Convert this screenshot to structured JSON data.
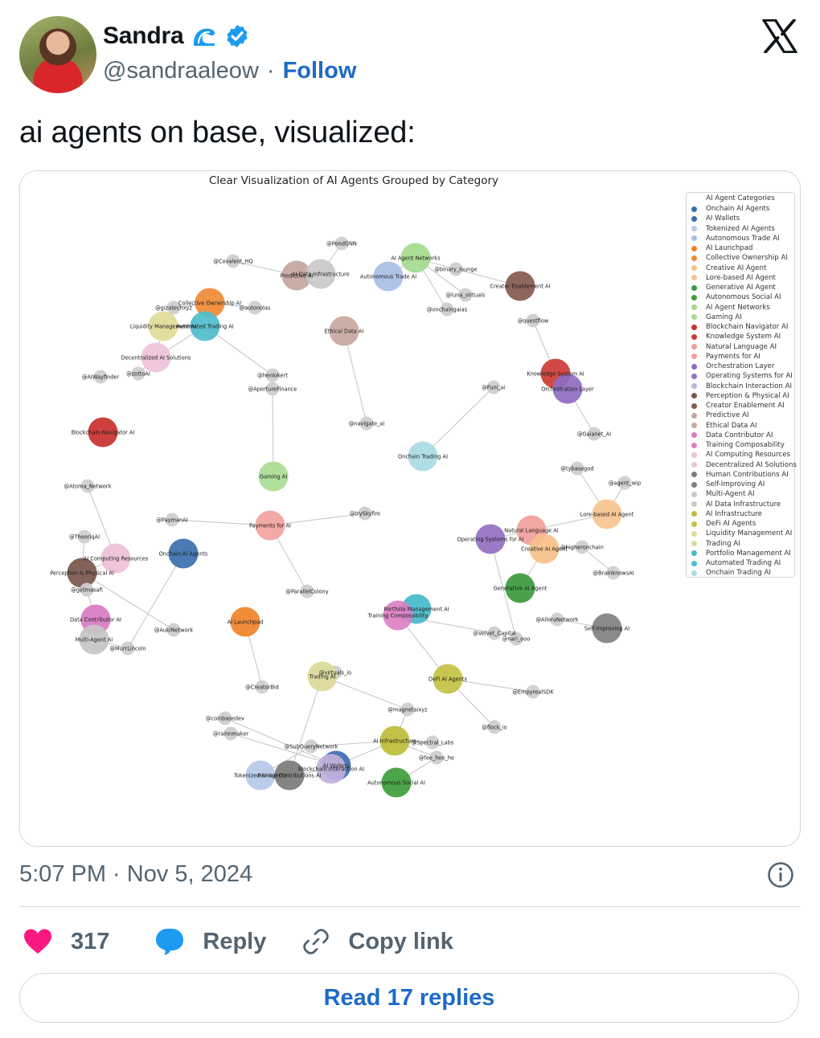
{
  "author": {
    "display_name": "Sandra",
    "handle": "@sandraaleow",
    "separator": "·",
    "follow_label": "Follow"
  },
  "tweet": {
    "text": "ai agents on base, visualized:",
    "timestamp": "5:07 PM · Nov 5, 2024"
  },
  "actions": {
    "likes": "317",
    "reply_label": "Reply",
    "copy_label": "Copy link",
    "read_replies": "Read 17 replies"
  },
  "colors": {
    "link_blue": "#1d6ac9",
    "heart": "#f91880",
    "reply_icon": "#1d9bf0",
    "verified": "#1d9bf0"
  },
  "icons": [
    "x-logo-icon",
    "verified-badge-icon",
    "wave-icon",
    "info-icon",
    "heart-icon",
    "reply-bubble-icon",
    "link-icon"
  ],
  "chart": {
    "title": "Clear Visualization of AI Agents Grouped by Category",
    "legend_title": "AI Agent Categories",
    "legend": [
      {
        "label": "Onchain AI Agents",
        "color": "#3b6fad"
      },
      {
        "label": "AI Wallets",
        "color": "#3f6db1"
      },
      {
        "label": "Tokenized AI Agents",
        "color": "#b6c9ea"
      },
      {
        "label": "Autonomous Trade AI",
        "color": "#a9bfe6"
      },
      {
        "label": "AI Launchpad",
        "color": "#f0822a"
      },
      {
        "label": "Collective Ownership AI",
        "color": "#ef8a35"
      },
      {
        "label": "Creative AI Agent",
        "color": "#f6c089"
      },
      {
        "label": "Lore-based AI Agent",
        "color": "#f6c48e"
      },
      {
        "label": "Generative AI Agent",
        "color": "#3a9a3c"
      },
      {
        "label": "Autonomous Social AI",
        "color": "#3d9e3a"
      },
      {
        "label": "AI Agent Networks",
        "color": "#a5db8e"
      },
      {
        "label": "Gaming AI",
        "color": "#a9dc93"
      },
      {
        "label": "Blockchain Navigator AI",
        "color": "#c9302c"
      },
      {
        "label": "Knowledge System AI",
        "color": "#cd3a35"
      },
      {
        "label": "Natural Language AI",
        "color": "#f1a09b"
      },
      {
        "label": "Payments for AI",
        "color": "#f2a29d"
      },
      {
        "label": "Orchestration Layer",
        "color": "#8e6cbf"
      },
      {
        "label": "Operating Systems for AI",
        "color": "#9270c3"
      },
      {
        "label": "Blockchain Interaction AI",
        "color": "#c2b1dc"
      },
      {
        "label": "Perception & Physical AI",
        "color": "#7a564c"
      },
      {
        "label": "Creator Enablement AI",
        "color": "#86594f"
      },
      {
        "label": "Predictive AI",
        "color": "#c4a59d"
      },
      {
        "label": "Ethical Data AI",
        "color": "#c7a89f"
      },
      {
        "label": "Data Contributor AI",
        "color": "#d87ac1"
      },
      {
        "label": "Training Composability",
        "color": "#dc80c4"
      },
      {
        "label": "AI Computing Resources",
        "color": "#efbfd9"
      },
      {
        "label": "Decentralized AI Solutions",
        "color": "#f0c2db"
      },
      {
        "label": "Human Contributions AI",
        "color": "#7a7a7a"
      },
      {
        "label": "Self-Improving AI",
        "color": "#808080"
      },
      {
        "label": "Multi-Agent AI",
        "color": "#c6c6c6"
      },
      {
        "label": "AI Data Infrastructure",
        "color": "#c9c9c9"
      },
      {
        "label": "AI Infrastructure",
        "color": "#bdbd3a"
      },
      {
        "label": "DeFi AI Agents",
        "color": "#c3c244"
      },
      {
        "label": "Liquidity Management AI",
        "color": "#dedb98"
      },
      {
        "label": "Trading AI",
        "color": "#dcd99a"
      },
      {
        "label": "Portfolio Management AI",
        "color": "#46b8c9"
      },
      {
        "label": "Automated Trading AI",
        "color": "#4fbccb"
      },
      {
        "label": "Onchain Trading AI",
        "color": "#a9dbe5"
      }
    ],
    "nodes": [
      {
        "id": "covalent",
        "label": "@Covalent_HQ",
        "color": "#cfcfcf",
        "r": "s"
      },
      {
        "id": "pondgnn",
        "label": "@PondGNN",
        "color": "#cfcfcf",
        "r": "s"
      },
      {
        "id": "predictive",
        "label": "Predictive AI",
        "color": "#c4a59d",
        "r": "l"
      },
      {
        "id": "aidatainfra",
        "label": "AI Data Infrastructure",
        "color": "#c9c9c9",
        "r": "l"
      },
      {
        "id": "aiagentnet",
        "label": "AI Agent Networks",
        "color": "#a5db8e",
        "r": "l"
      },
      {
        "id": "binary",
        "label": "@binary_lounge",
        "color": "#cfcfcf",
        "r": "s"
      },
      {
        "id": "autotrade",
        "label": "Autonomous Trade AI",
        "color": "#a9bfe6",
        "r": "l"
      },
      {
        "id": "luna",
        "label": "@luna_virtuals",
        "color": "#cfcfcf",
        "r": "s"
      },
      {
        "id": "onchaingaias",
        "label": "@onchaingaias",
        "color": "#cfcfcf",
        "r": "s"
      },
      {
        "id": "creatorenable",
        "label": "Creator Enablement AI",
        "color": "#86594f",
        "r": "l"
      },
      {
        "id": "collective",
        "label": "Collective Ownership AI",
        "color": "#ef8a35",
        "r": "l"
      },
      {
        "id": "gizatech",
        "label": "@gizatechxyz",
        "color": "#cfcfcf",
        "r": "s"
      },
      {
        "id": "autonolas",
        "label": "@autonolas",
        "color": "#cfcfcf",
        "r": "s"
      },
      {
        "id": "liquidity",
        "label": "Liquidity Management AI",
        "color": "#dedb98",
        "r": "l"
      },
      {
        "id": "autotrading",
        "label": "Automated Trading AI",
        "color": "#4fbccb",
        "r": "l"
      },
      {
        "id": "ethicaldata",
        "label": "Ethical Data AI",
        "color": "#c7a89f",
        "r": "l"
      },
      {
        "id": "questflow",
        "label": "@questflow",
        "color": "#cfcfcf",
        "r": "s"
      },
      {
        "id": "decentral",
        "label": "Decentralized AI Solutions",
        "color": "#f0c2db",
        "r": "l"
      },
      {
        "id": "aiwayfinder",
        "label": "@AIWayfinder",
        "color": "#cfcfcf",
        "r": "s"
      },
      {
        "id": "zottoai",
        "label": "@zottoAI",
        "color": "#cfcfcf",
        "r": "s"
      },
      {
        "id": "heniokert",
        "label": "@henlokert",
        "color": "#cfcfcf",
        "r": "s"
      },
      {
        "id": "aperture",
        "label": "@ApertureFinance",
        "color": "#cfcfcf",
        "r": "s"
      },
      {
        "id": "knowledge",
        "label": "Knowledge System AI",
        "color": "#cd3a35",
        "r": "l"
      },
      {
        "id": "orchestration",
        "label": "Orchestration Layer",
        "color": "#8e6cbf",
        "r": "l"
      },
      {
        "id": "funai",
        "label": "@Funi_ai",
        "color": "#cfcfcf",
        "r": "s"
      },
      {
        "id": "navigateai",
        "label": "@navigate_ai",
        "color": "#cfcfcf",
        "r": "s"
      },
      {
        "id": "blocknav",
        "label": "Blockchain Navigator AI",
        "color": "#c9302c",
        "r": "l"
      },
      {
        "id": "gaianet",
        "label": "@Gaianet_AI",
        "color": "#cfcfcf",
        "r": "s"
      },
      {
        "id": "onchaintrading",
        "label": "Onchain Trading AI",
        "color": "#a9dbe5",
        "r": "l"
      },
      {
        "id": "tybasegod",
        "label": "@tybasegod",
        "color": "#cfcfcf",
        "r": "s"
      },
      {
        "id": "agentwip",
        "label": "@agent_wip",
        "color": "#cfcfcf",
        "r": "s"
      },
      {
        "id": "gamingai",
        "label": "Gaming AI",
        "color": "#a9dc93",
        "r": "l"
      },
      {
        "id": "atoma",
        "label": "@Atoma_Network",
        "color": "#cfcfcf",
        "r": "s"
      },
      {
        "id": "paymanai",
        "label": "@PaymanAI",
        "color": "#cfcfcf",
        "r": "s"
      },
      {
        "id": "payments",
        "label": "Payments for AI",
        "color": "#f2a29d",
        "r": "l"
      },
      {
        "id": "tryskyfire",
        "label": "@trySkyfire",
        "color": "#cfcfcf",
        "r": "s"
      },
      {
        "id": "lorebased",
        "label": "Lore-based AI Agent",
        "color": "#f6c48e",
        "r": "l"
      },
      {
        "id": "theoriqai",
        "label": "@TheoriqAI",
        "color": "#cfcfcf",
        "r": "s"
      },
      {
        "id": "onchainagents",
        "label": "Onchain AI Agents",
        "color": "#3b6fad",
        "r": "l"
      },
      {
        "id": "natural",
        "label": "Natural Language AI",
        "color": "#f1a09b",
        "r": "l"
      },
      {
        "id": "opsys",
        "label": "Operating Systems for AI",
        "color": "#9270c3",
        "r": "l"
      },
      {
        "id": "creative",
        "label": "Creative AI Agent",
        "color": "#f6c089",
        "r": "l"
      },
      {
        "id": "higheron",
        "label": "@higheronchain",
        "color": "#cfcfcf",
        "r": "s"
      },
      {
        "id": "computing",
        "label": "AI Computing Resources",
        "color": "#efbfd9",
        "r": "l"
      },
      {
        "id": "perception",
        "label": "Perception & Physical AI",
        "color": "#7a564c",
        "r": "l"
      },
      {
        "id": "brainknows",
        "label": "@BrainknowsAI",
        "color": "#cfcfcf",
        "r": "s"
      },
      {
        "id": "getmasafi",
        "label": "@getmasafi",
        "color": "#cfcfcf",
        "r": "s"
      },
      {
        "id": "generative",
        "label": "Generative AI Agent",
        "color": "#3a9a3c",
        "r": "l"
      },
      {
        "id": "parallel",
        "label": "@ParallelColony",
        "color": "#cfcfcf",
        "r": "s"
      },
      {
        "id": "portfolio",
        "label": "Portfolio Management AI",
        "color": "#46b8c9",
        "r": "l"
      },
      {
        "id": "training",
        "label": "Training Composability",
        "color": "#dc80c4",
        "r": "l"
      },
      {
        "id": "datacontrib",
        "label": "Data Contributor AI",
        "color": "#d87ac1",
        "r": "l"
      },
      {
        "id": "aillora",
        "label": "@AlloraNetwork",
        "color": "#cfcfcf",
        "r": "s"
      },
      {
        "id": "selfimprove",
        "label": "Self-Improving AI",
        "color": "#808080",
        "r": "l"
      },
      {
        "id": "aitaunch",
        "label": "AI Launchpad",
        "color": "#f0822a",
        "r": "l"
      },
      {
        "id": "aukinet",
        "label": "@AukiNetwork",
        "color": "#cfcfcf",
        "r": "s"
      },
      {
        "id": "velvet",
        "label": "@Velvet_Capital",
        "color": "#cfcfcf",
        "r": "s"
      },
      {
        "id": "narisoo",
        "label": "@nari_ooo",
        "color": "#cfcfcf",
        "r": "s"
      },
      {
        "id": "multiagent",
        "label": "Multi-Agent AI",
        "color": "#c6c6c6",
        "r": "l"
      },
      {
        "id": "murrlincoln",
        "label": "@MurrLincoln",
        "color": "#cfcfcf",
        "r": "s"
      },
      {
        "id": "virtuals",
        "label": "@virtuals_io",
        "color": "#cfcfcf",
        "r": "s"
      },
      {
        "id": "tradingai",
        "label": "Trading AI",
        "color": "#dcd99a",
        "r": "l"
      },
      {
        "id": "defi",
        "label": "DeFi AI Agents",
        "color": "#c3c244",
        "r": "l"
      },
      {
        "id": "creatorbid",
        "label": "@CreatorBid",
        "color": "#cfcfcf",
        "r": "s"
      },
      {
        "id": "empyreal",
        "label": "@EmpyrealSDK",
        "color": "#cfcfcf",
        "r": "s"
      },
      {
        "id": "magnetaixyz",
        "label": "@magnetaixyz",
        "color": "#cfcfcf",
        "r": "s"
      },
      {
        "id": "coinbasedev",
        "label": "@coinbasedev",
        "color": "#cfcfcf",
        "r": "s"
      },
      {
        "id": "flockio",
        "label": "@flock_io",
        "color": "#cfcfcf",
        "r": "s"
      },
      {
        "id": "rainmaker",
        "label": "@rainnmaker",
        "color": "#cfcfcf",
        "r": "s"
      },
      {
        "id": "aiinfra",
        "label": "AI Infrastructure",
        "color": "#bdbd3a",
        "r": "l"
      },
      {
        "id": "spectral",
        "label": "@Spectral_Labs",
        "color": "#cfcfcf",
        "r": "s"
      },
      {
        "id": "subquery",
        "label": "@SubQueryNetwork",
        "color": "#cfcfcf",
        "r": "s"
      },
      {
        "id": "feeheehe",
        "label": "@fee_hee_he",
        "color": "#cfcfcf",
        "r": "s"
      },
      {
        "id": "aiwallets",
        "label": "AI Wallets",
        "color": "#3f6db1",
        "r": "l"
      },
      {
        "id": "blockinteract",
        "label": "Blockchain Interaction AI",
        "color": "#c2b1dc",
        "r": "l"
      },
      {
        "id": "tokenized",
        "label": "Tokenized AI Agents",
        "color": "#b6c9ea",
        "r": "l"
      },
      {
        "id": "humancontrib",
        "label": "Human Contributions AI",
        "color": "#7a7a7a",
        "r": "l"
      },
      {
        "id": "autosocial",
        "label": "Autonomous Social AI",
        "color": "#3d9e3a",
        "r": "l"
      }
    ],
    "edges": [
      [
        "covalent",
        "predictive"
      ],
      [
        "pondgnn",
        "aidatainfra"
      ],
      [
        "predictive",
        "aidatainfra"
      ],
      [
        "aiagentnet",
        "binary"
      ],
      [
        "aiagentnet",
        "autotrade"
      ],
      [
        "aiagentnet",
        "luna"
      ],
      [
        "aiagentnet",
        "onchaingaias"
      ],
      [
        "binary",
        "creatorenable"
      ],
      [
        "collective",
        "gizatech"
      ],
      [
        "collective",
        "autonolas"
      ],
      [
        "gizatech",
        "liquidity"
      ],
      [
        "liquidity",
        "autotrading"
      ],
      [
        "liquidity",
        "decentral"
      ],
      [
        "autotrading",
        "decentral"
      ],
      [
        "autotrading",
        "heniokert"
      ],
      [
        "decentral",
        "zottoai"
      ],
      [
        "aperture",
        "gamingai"
      ],
      [
        "ethicaldata",
        "navigateai"
      ],
      [
        "questflow",
        "knowledge"
      ],
      [
        "knowledge",
        "orchestration"
      ],
      [
        "orchestration",
        "gaianet"
      ],
      [
        "funai",
        "onchaintrading"
      ],
      [
        "tybasegod",
        "lorebased"
      ],
      [
        "agentwip",
        "lorebased"
      ],
      [
        "lorebased",
        "natural"
      ],
      [
        "natural",
        "opsys"
      ],
      [
        "creative",
        "higheron"
      ],
      [
        "creative",
        "generative"
      ],
      [
        "higheron",
        "brainknows"
      ],
      [
        "opsys",
        "narisoo"
      ],
      [
        "paymanai",
        "payments"
      ],
      [
        "payments",
        "tryskyfire"
      ],
      [
        "payments",
        "parallel"
      ],
      [
        "atoma",
        "computing"
      ],
      [
        "theoriqai",
        "perception"
      ],
      [
        "perception",
        "computing"
      ],
      [
        "perception",
        "getmasafi"
      ],
      [
        "perception",
        "aukinet"
      ],
      [
        "getmasafi",
        "datacontrib"
      ],
      [
        "onchainagents",
        "murrlincoln"
      ],
      [
        "datacontrib",
        "multiagent"
      ],
      [
        "multiagent",
        "murrlincoln"
      ],
      [
        "training",
        "velvet"
      ],
      [
        "training",
        "defi"
      ],
      [
        "aillora",
        "selfimprove"
      ],
      [
        "aitaunch",
        "creatorbid"
      ],
      [
        "virtuals",
        "tradingai"
      ],
      [
        "tradingai",
        "magnetaixyz"
      ],
      [
        "tradingai",
        "humancontrib"
      ],
      [
        "defi",
        "empyreal"
      ],
      [
        "defi",
        "flockio"
      ],
      [
        "coinbasedev",
        "aiwallets"
      ],
      [
        "rainmaker",
        "aiwallets"
      ],
      [
        "aiinfra",
        "spectral"
      ],
      [
        "aiinfra",
        "subquery"
      ],
      [
        "aiinfra",
        "feeheehe"
      ],
      [
        "aiinfra",
        "aiwallets"
      ],
      [
        "aiinfra",
        "magnetaixyz"
      ],
      [
        "feeheehe",
        "autosocial"
      ],
      [
        "subquery",
        "tokenized"
      ],
      [
        "tokenized",
        "humancontrib"
      ],
      [
        "aiwallets",
        "blockinteract"
      ],
      [
        "humancontrib",
        "blockinteract"
      ]
    ]
  }
}
